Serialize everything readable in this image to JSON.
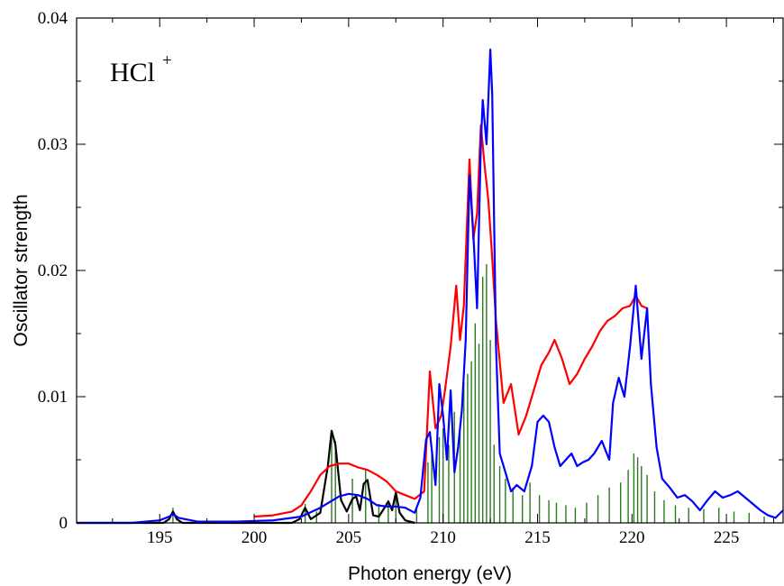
{
  "chart_data": {
    "type": "line",
    "annotation": {
      "text": "HCl",
      "superscript": "+"
    },
    "xlabel": "Photon energy (eV)",
    "ylabel": "Oscillator strength",
    "xlim": [
      190.6,
      228.0
    ],
    "ylim": [
      0,
      0.04
    ],
    "xticks": [
      195,
      200,
      205,
      210,
      215,
      220,
      225
    ],
    "xtick_labels": [
      "195",
      "200",
      "205",
      "210",
      "215",
      "220",
      "225"
    ],
    "yticks": [
      0,
      0.01,
      0.02,
      0.03,
      0.04
    ],
    "ytick_labels": [
      "0",
      "0.01",
      "0.02",
      "0.03",
      "0.04"
    ],
    "grid": false,
    "series": [
      {
        "color": "#2a7a1e",
        "style": "sticks",
        "x": [
          195.7,
          202.7,
          203.3,
          204.1,
          204.3,
          205.2,
          205.9,
          206.6,
          207.1,
          207.5,
          208.6,
          209.2,
          209.4,
          209.8,
          210.0,
          210.3,
          210.6,
          210.9,
          211.1,
          211.3,
          211.5,
          211.7,
          211.9,
          212.1,
          212.3,
          212.5,
          212.7,
          213.0,
          213.3,
          213.7,
          214.2,
          214.6,
          215.1,
          215.6,
          216.0,
          216.5,
          217.0,
          217.6,
          218.2,
          218.8,
          219.4,
          219.8,
          220.1,
          220.3,
          220.5,
          220.8,
          221.2,
          221.7,
          222.3,
          223.0,
          223.8,
          224.6,
          225.4,
          226.2,
          227.0
        ],
        "values": [
          0.0012,
          0.0015,
          0.0009,
          0.0072,
          0.0065,
          0.0035,
          0.0042,
          0.0015,
          0.0018,
          0.0022,
          0.0012,
          0.0048,
          0.0055,
          0.0068,
          0.0075,
          0.0062,
          0.0088,
          0.0072,
          0.0112,
          0.0118,
          0.0128,
          0.0158,
          0.0142,
          0.0195,
          0.0205,
          0.0145,
          0.0062,
          0.0045,
          0.0035,
          0.0028,
          0.0022,
          0.0032,
          0.0022,
          0.0018,
          0.0016,
          0.0014,
          0.0012,
          0.0016,
          0.0022,
          0.0028,
          0.0032,
          0.0042,
          0.0055,
          0.0052,
          0.0045,
          0.0038,
          0.0025,
          0.0018,
          0.0014,
          0.0012,
          0.0011,
          0.0012,
          0.0009,
          0.0008,
          0.0005
        ]
      },
      {
        "color": "#000000",
        "x": [
          190.6,
          195.2,
          195.5,
          195.7,
          195.9,
          196.2,
          202.0,
          202.4,
          202.7,
          203.0,
          203.5,
          203.9,
          204.1,
          204.3,
          204.6,
          204.9,
          205.2,
          205.4,
          205.6,
          205.8,
          206.0,
          206.3,
          206.6,
          206.9,
          207.1,
          207.3,
          207.5,
          207.7,
          208.0,
          208.5
        ],
        "values": [
          0,
          0,
          0.0003,
          0.0009,
          0.0003,
          0,
          0,
          0.0003,
          0.0012,
          0.0003,
          0.0008,
          0.0045,
          0.0073,
          0.0062,
          0.0018,
          0.0009,
          0.0019,
          0.0021,
          0.001,
          0.0031,
          0.0034,
          0.0006,
          0.0005,
          0.0012,
          0.0017,
          0.001,
          0.0024,
          0.0008,
          0.0002,
          0
        ]
      },
      {
        "color": "#ff0000",
        "x": [
          200.0,
          201.0,
          202.0,
          202.5,
          203.0,
          203.5,
          204.0,
          204.5,
          205.0,
          205.5,
          206.0,
          206.5,
          207.0,
          207.5,
          208.0,
          208.5,
          209.0,
          209.3,
          209.6,
          209.9,
          210.1,
          210.4,
          210.7,
          210.9,
          211.1,
          211.4,
          211.6,
          211.8,
          212.0,
          212.2,
          212.4,
          212.6,
          212.8,
          213.2,
          213.6,
          214.0,
          214.4,
          214.8,
          215.2,
          215.6,
          215.9,
          216.3,
          216.7,
          217.1,
          217.5,
          217.9,
          218.3,
          218.7,
          219.1,
          219.5,
          219.9,
          220.2,
          220.5,
          220.8
        ],
        "values": [
          0.0005,
          0.0006,
          0.0009,
          0.0014,
          0.0025,
          0.0038,
          0.0045,
          0.0047,
          0.0047,
          0.0044,
          0.0042,
          0.0038,
          0.0033,
          0.0025,
          0.0022,
          0.0019,
          0.0025,
          0.012,
          0.0075,
          0.0085,
          0.0105,
          0.014,
          0.0188,
          0.0145,
          0.0172,
          0.0288,
          0.0225,
          0.0245,
          0.0315,
          0.0283,
          0.0255,
          0.021,
          0.016,
          0.0095,
          0.011,
          0.007,
          0.0085,
          0.0105,
          0.0125,
          0.0135,
          0.0145,
          0.013,
          0.011,
          0.0118,
          0.013,
          0.014,
          0.0152,
          0.016,
          0.0164,
          0.017,
          0.0172,
          0.018,
          0.0172,
          0.017
        ]
      },
      {
        "color": "#0000ff",
        "x": [
          190.6,
          193.5,
          195.0,
          195.5,
          195.7,
          196.0,
          197.0,
          199.0,
          201.0,
          202.5,
          203.5,
          204.5,
          205.0,
          205.5,
          206.0,
          206.5,
          207.0,
          207.5,
          208.0,
          208.5,
          208.8,
          209.1,
          209.3,
          209.6,
          209.8,
          210.0,
          210.2,
          210.4,
          210.6,
          210.8,
          211.0,
          211.2,
          211.4,
          211.6,
          211.8,
          212.0,
          212.1,
          212.3,
          212.5,
          212.6,
          212.8,
          213.0,
          213.3,
          213.6,
          213.9,
          214.3,
          214.7,
          215.0,
          215.3,
          215.6,
          215.9,
          216.2,
          216.5,
          216.8,
          217.1,
          217.4,
          217.7,
          218.0,
          218.4,
          218.8,
          219.0,
          219.3,
          219.6,
          219.9,
          220.2,
          220.5,
          220.8,
          221.0,
          221.3,
          221.6,
          222.0,
          222.4,
          222.8,
          223.2,
          223.6,
          224.0,
          224.4,
          224.8,
          225.2,
          225.6,
          226.0,
          226.4,
          226.8,
          227.2,
          227.6,
          228.0
        ],
        "values": [
          0,
          0,
          0.0002,
          0.0005,
          0.0007,
          0.0004,
          0.0001,
          0.0001,
          0.0002,
          0.0005,
          0.0012,
          0.0021,
          0.0023,
          0.0022,
          0.0019,
          0.0014,
          0.0013,
          0.0013,
          0.0012,
          0.0008,
          0.002,
          0.0066,
          0.0072,
          0.003,
          0.011,
          0.0085,
          0.005,
          0.0105,
          0.004,
          0.006,
          0.009,
          0.0145,
          0.0275,
          0.023,
          0.017,
          0.03,
          0.0335,
          0.03,
          0.0375,
          0.034,
          0.014,
          0.0055,
          0.004,
          0.0025,
          0.003,
          0.0025,
          0.0045,
          0.008,
          0.0085,
          0.008,
          0.006,
          0.0045,
          0.005,
          0.0055,
          0.0045,
          0.0048,
          0.005,
          0.0055,
          0.0065,
          0.005,
          0.0095,
          0.0115,
          0.01,
          0.014,
          0.0188,
          0.013,
          0.017,
          0.011,
          0.006,
          0.0035,
          0.0028,
          0.002,
          0.0022,
          0.0017,
          0.001,
          0.0018,
          0.0025,
          0.002,
          0.0022,
          0.0025,
          0.002,
          0.0015,
          0.001,
          0.0006,
          0.0004,
          0.001
        ]
      }
    ]
  }
}
